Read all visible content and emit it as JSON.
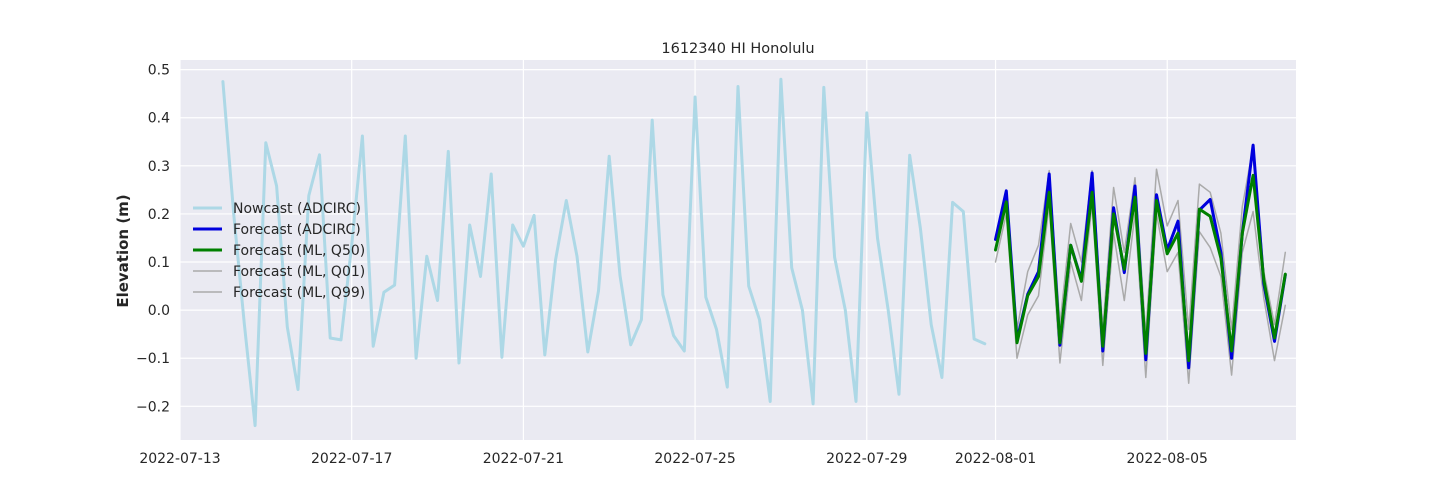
{
  "chart_data": {
    "type": "line",
    "title": "1612340 HI Honolulu",
    "xlabel": "",
    "ylabel": "Elevation (m)",
    "x_ticks": [
      "2022-07-13",
      "2022-07-17",
      "2022-07-21",
      "2022-07-25",
      "2022-07-29",
      "2022-08-01",
      "2022-08-05"
    ],
    "y_ticks": [
      "−0.2",
      "−0.1",
      "0.0",
      "0.1",
      "0.2",
      "0.3",
      "0.4",
      "0.5"
    ],
    "xlim": [
      "2022-07-13",
      "2022-08-08"
    ],
    "ylim": [
      -0.27,
      0.52
    ],
    "grid": true,
    "legend_position": "center-left",
    "series": [
      {
        "name": "Nowcast (ADCIRC)",
        "color": "#add8e6",
        "width": 3,
        "x": [
          "2022-07-14T00:00",
          "2022-07-14T06:00",
          "2022-07-14T12:00",
          "2022-07-14T18:00",
          "2022-07-15T00:00",
          "2022-07-15T06:00",
          "2022-07-15T12:00",
          "2022-07-15T18:00",
          "2022-07-16T00:00",
          "2022-07-16T06:00",
          "2022-07-16T12:00",
          "2022-07-16T18:00",
          "2022-07-17T00:00",
          "2022-07-17T06:00",
          "2022-07-17T12:00",
          "2022-07-17T18:00",
          "2022-07-18T00:00",
          "2022-07-18T06:00",
          "2022-07-18T12:00",
          "2022-07-18T18:00",
          "2022-07-19T00:00",
          "2022-07-19T06:00",
          "2022-07-19T12:00",
          "2022-07-19T18:00",
          "2022-07-20T00:00",
          "2022-07-20T06:00",
          "2022-07-20T12:00",
          "2022-07-20T18:00",
          "2022-07-21T00:00",
          "2022-07-21T06:00",
          "2022-07-21T12:00",
          "2022-07-21T18:00",
          "2022-07-22T00:00",
          "2022-07-22T06:00",
          "2022-07-22T12:00",
          "2022-07-22T18:00",
          "2022-07-23T00:00",
          "2022-07-23T06:00",
          "2022-07-23T12:00",
          "2022-07-23T18:00",
          "2022-07-24T00:00",
          "2022-07-24T06:00",
          "2022-07-24T12:00",
          "2022-07-24T18:00",
          "2022-07-25T00:00",
          "2022-07-25T06:00",
          "2022-07-25T12:00",
          "2022-07-25T18:00",
          "2022-07-26T00:00",
          "2022-07-26T06:00",
          "2022-07-26T12:00",
          "2022-07-26T18:00",
          "2022-07-27T00:00",
          "2022-07-27T06:00",
          "2022-07-27T12:00",
          "2022-07-27T18:00",
          "2022-07-28T00:00",
          "2022-07-28T06:00",
          "2022-07-28T12:00",
          "2022-07-28T18:00",
          "2022-07-29T00:00",
          "2022-07-29T06:00",
          "2022-07-29T12:00",
          "2022-07-29T18:00",
          "2022-07-30T00:00",
          "2022-07-30T06:00",
          "2022-07-30T12:00",
          "2022-07-30T18:00",
          "2022-07-31T00:00",
          "2022-07-31T06:00",
          "2022-07-31T12:00",
          "2022-07-31T18:00"
        ],
        "y": [
          0.475,
          0.2,
          -0.03,
          -0.24,
          0.348,
          0.258,
          -0.035,
          -0.165,
          0.238,
          0.323,
          -0.058,
          -0.062,
          0.135,
          0.362,
          -0.075,
          0.037,
          0.052,
          0.362,
          -0.1,
          0.112,
          0.02,
          0.33,
          -0.11,
          0.177,
          0.07,
          0.283,
          -0.098,
          0.177,
          0.133,
          0.197,
          -0.093,
          0.105,
          0.228,
          0.112,
          -0.087,
          0.04,
          0.32,
          0.072,
          -0.072,
          -0.02,
          0.395,
          0.032,
          -0.053,
          -0.085,
          0.443,
          0.027,
          -0.04,
          -0.16,
          0.465,
          0.05,
          -0.02,
          -0.19,
          0.48,
          0.088,
          0.0,
          -0.195,
          0.463,
          0.11,
          0.0,
          -0.19,
          0.41,
          0.15,
          0.0,
          -0.175,
          0.322,
          0.17,
          -0.03,
          -0.14,
          0.224,
          0.205,
          -0.06,
          -0.07
        ]
      },
      {
        "name": "Forecast (ADCIRC)",
        "color": "#0000dd",
        "width": 3,
        "x": [
          "2022-08-01T00:00",
          "2022-08-01T06:00",
          "2022-08-01T12:00",
          "2022-08-01T18:00",
          "2022-08-02T00:00",
          "2022-08-02T06:00",
          "2022-08-02T12:00",
          "2022-08-02T18:00",
          "2022-08-03T00:00",
          "2022-08-03T06:00",
          "2022-08-03T12:00",
          "2022-08-03T18:00",
          "2022-08-04T00:00",
          "2022-08-04T06:00",
          "2022-08-04T12:00",
          "2022-08-04T18:00",
          "2022-08-05T00:00",
          "2022-08-05T06:00",
          "2022-08-05T12:00",
          "2022-08-05T18:00",
          "2022-08-06T00:00",
          "2022-08-06T06:00",
          "2022-08-06T12:00",
          "2022-08-06T18:00",
          "2022-08-07T00:00",
          "2022-08-07T06:00",
          "2022-08-07T12:00",
          "2022-08-07T18:00"
        ],
        "y": [
          0.147,
          0.248,
          -0.062,
          0.033,
          0.08,
          0.283,
          -0.073,
          0.135,
          0.063,
          0.285,
          -0.085,
          0.213,
          0.078,
          0.258,
          -0.103,
          0.24,
          0.125,
          0.185,
          -0.12,
          0.208,
          0.23,
          0.12,
          -0.1,
          0.16,
          0.343,
          0.055,
          -0.065,
          0.073
        ]
      },
      {
        "name": "Forecast (ML, Q50)",
        "color": "#008000",
        "width": 3,
        "x": [
          "2022-08-01T00:00",
          "2022-08-01T06:00",
          "2022-08-01T12:00",
          "2022-08-01T18:00",
          "2022-08-02T00:00",
          "2022-08-02T06:00",
          "2022-08-02T12:00",
          "2022-08-02T18:00",
          "2022-08-03T00:00",
          "2022-08-03T06:00",
          "2022-08-03T12:00",
          "2022-08-03T18:00",
          "2022-08-04T00:00",
          "2022-08-04T06:00",
          "2022-08-04T12:00",
          "2022-08-04T18:00",
          "2022-08-05T00:00",
          "2022-08-05T06:00",
          "2022-08-05T12:00",
          "2022-08-05T18:00",
          "2022-08-06T00:00",
          "2022-08-06T06:00",
          "2022-08-06T12:00",
          "2022-08-06T18:00",
          "2022-08-07T00:00",
          "2022-08-07T06:00",
          "2022-08-07T12:00",
          "2022-08-07T18:00"
        ],
        "y": [
          0.125,
          0.225,
          -0.068,
          0.03,
          0.07,
          0.245,
          -0.068,
          0.135,
          0.06,
          0.245,
          -0.075,
          0.2,
          0.085,
          0.235,
          -0.09,
          0.228,
          0.117,
          0.16,
          -0.105,
          0.21,
          0.195,
          0.108,
          -0.085,
          0.16,
          0.28,
          0.063,
          -0.058,
          0.075
        ]
      },
      {
        "name": "Forecast (ML, Q01)",
        "color": "#aaaaaa",
        "width": 1.5,
        "x": [
          "2022-08-01T00:00",
          "2022-08-01T06:00",
          "2022-08-01T12:00",
          "2022-08-01T18:00",
          "2022-08-02T00:00",
          "2022-08-02T06:00",
          "2022-08-02T12:00",
          "2022-08-02T18:00",
          "2022-08-03T00:00",
          "2022-08-03T06:00",
          "2022-08-03T12:00",
          "2022-08-03T18:00",
          "2022-08-04T00:00",
          "2022-08-04T06:00",
          "2022-08-04T12:00",
          "2022-08-04T18:00",
          "2022-08-05T00:00",
          "2022-08-05T06:00",
          "2022-08-05T12:00",
          "2022-08-05T18:00",
          "2022-08-06T00:00",
          "2022-08-06T06:00",
          "2022-08-06T12:00",
          "2022-08-06T18:00",
          "2022-08-07T00:00",
          "2022-08-07T06:00",
          "2022-08-07T12:00",
          "2022-08-07T18:00"
        ],
        "y": [
          0.1,
          0.2,
          -0.1,
          -0.01,
          0.03,
          0.22,
          -0.11,
          0.1,
          0.02,
          0.22,
          -0.115,
          0.16,
          0.02,
          0.2,
          -0.14,
          0.2,
          0.08,
          0.12,
          -0.152,
          0.163,
          0.13,
          0.07,
          -0.135,
          0.12,
          0.205,
          0.025,
          -0.105,
          0.01
        ]
      },
      {
        "name": "Forecast (ML, Q99)",
        "color": "#aaaaaa",
        "width": 1.5,
        "x": [
          "2022-08-01T00:00",
          "2022-08-01T06:00",
          "2022-08-01T12:00",
          "2022-08-01T18:00",
          "2022-08-02T00:00",
          "2022-08-02T06:00",
          "2022-08-02T12:00",
          "2022-08-02T18:00",
          "2022-08-03T00:00",
          "2022-08-03T06:00",
          "2022-08-03T12:00",
          "2022-08-03T18:00",
          "2022-08-04T00:00",
          "2022-08-04T06:00",
          "2022-08-04T12:00",
          "2022-08-04T18:00",
          "2022-08-05T00:00",
          "2022-08-05T06:00",
          "2022-08-05T12:00",
          "2022-08-05T18:00",
          "2022-08-06T00:00",
          "2022-08-06T06:00",
          "2022-08-06T12:00",
          "2022-08-06T18:00",
          "2022-08-07T00:00",
          "2022-08-07T06:00",
          "2022-08-07T12:00",
          "2022-08-07T18:00"
        ],
        "y": [
          0.145,
          0.245,
          -0.04,
          0.08,
          0.135,
          0.29,
          -0.03,
          0.18,
          0.1,
          0.29,
          -0.04,
          0.255,
          0.12,
          0.275,
          -0.05,
          0.293,
          0.175,
          0.228,
          -0.04,
          0.262,
          0.245,
          0.16,
          -0.04,
          0.215,
          0.34,
          0.08,
          -0.03,
          0.12
        ]
      }
    ]
  }
}
